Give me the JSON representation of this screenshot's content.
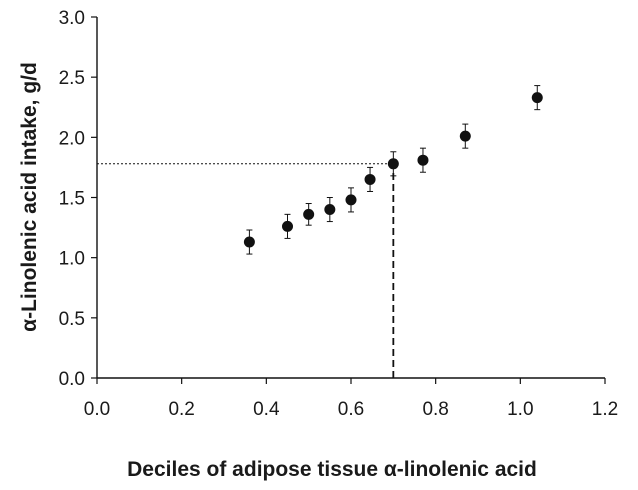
{
  "chart_data": {
    "type": "scatter",
    "title": "",
    "xlabel": "Deciles of adipose tissue α-linolenic acid",
    "ylabel": "α-Linolenic acid intake, g/d",
    "xlim": [
      0.0,
      1.2
    ],
    "ylim": [
      0.0,
      3.0
    ],
    "xticks": [
      "0.0",
      "0.2",
      "0.4",
      "0.6",
      "0.8",
      "1.0",
      "1.2"
    ],
    "yticks": [
      "0.0",
      "0.5",
      "1.0",
      "1.5",
      "2.0",
      "2.5",
      "3.0"
    ],
    "grid": false,
    "legend": "none",
    "series": [
      {
        "x": [
          0.36,
          0.45,
          0.5,
          0.55,
          0.6,
          0.645,
          0.7,
          0.77,
          0.87,
          1.04
        ],
        "y": [
          1.13,
          1.26,
          1.36,
          1.4,
          1.48,
          1.65,
          1.78,
          1.81,
          2.01,
          2.33
        ],
        "error": [
          0.1,
          0.1,
          0.09,
          0.1,
          0.1,
          0.1,
          0.1,
          0.1,
          0.1,
          0.1
        ],
        "color": "#111111"
      }
    ],
    "reference_lines": [
      {
        "style": "dotted",
        "from": [
          0.0,
          1.78
        ],
        "to": [
          0.7,
          1.78
        ]
      },
      {
        "style": "dashed",
        "from": [
          0.7,
          0.0
        ],
        "to": [
          0.7,
          1.78
        ]
      }
    ]
  }
}
